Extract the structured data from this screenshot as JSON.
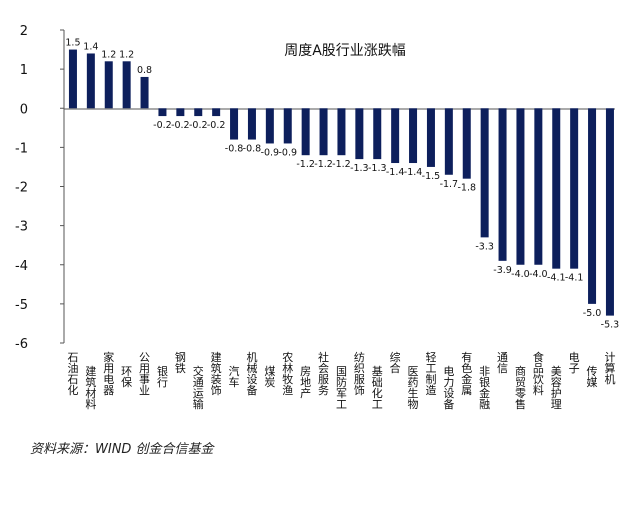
{
  "chart_data": {
    "type": "bar",
    "title": "周度A股行业涨跌幅",
    "categories": [
      "石油石化",
      "建筑材料",
      "家用电器",
      "环保",
      "公用事业",
      "银行",
      "钢铁",
      "交通运输",
      "建筑装饰",
      "汽车",
      "机械设备",
      "煤炭",
      "农林牧渔",
      "房地产",
      "社会服务",
      "国防军工",
      "纺织服饰",
      "基础化工",
      "综合",
      "医药生物",
      "轻工制造",
      "电力设备",
      "有色金属",
      "非银金融",
      "通信",
      "商贸零售",
      "食品饮料",
      "美容护理",
      "电子",
      "传媒",
      "计算机"
    ],
    "values": [
      1.5,
      1.4,
      1.2,
      1.2,
      0.8,
      -0.2,
      -0.2,
      -0.2,
      -0.2,
      -0.8,
      -0.8,
      -0.9,
      -0.9,
      -1.2,
      -1.2,
      -1.2,
      -1.3,
      -1.3,
      -1.4,
      -1.4,
      -1.5,
      -1.7,
      -1.8,
      -3.3,
      -3.9,
      -4.0,
      -4.0,
      -4.1,
      -4.1,
      -5.0,
      -5.3
    ],
    "value_labels": [
      "1.5",
      "1.4",
      "1.2",
      "1.2",
      "0.8",
      "-0.2",
      "-0.2",
      "-0.2",
      "-0.2",
      "-0.8",
      "-0.8",
      "-0.9",
      "-0.9",
      "-1.2",
      "-1.2",
      "-1.2",
      "-1.3",
      "-1.3",
      "-1.4",
      "-1.4",
      "-1.5",
      "-1.7",
      "-1.8",
      "-3.3",
      "-3.9",
      "-4.0",
      "-4.0",
      "-4.1",
      "-4.1",
      "-5.0",
      "-5.3"
    ],
    "y_ticks": [
      2,
      1,
      0,
      -1,
      -2,
      -3,
      -4,
      -5,
      -6
    ],
    "y_tick_labels": [
      "2",
      "1",
      "0",
      "-1",
      "-2",
      "-3",
      "-4",
      "-5",
      "-6"
    ],
    "ylim": [
      -6,
      2
    ],
    "grid": false,
    "legend": "none",
    "bar_color": "#0d1f5c"
  },
  "source": "资料来源：WIND  创金合信基金"
}
